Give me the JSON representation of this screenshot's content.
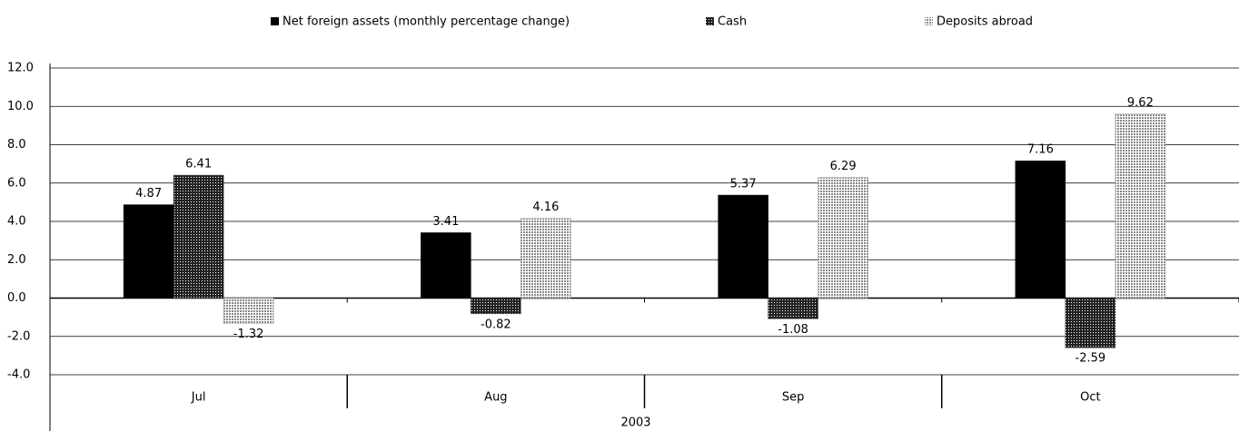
{
  "chart_data": {
    "type": "bar",
    "categories": [
      "Jul",
      "Aug",
      "Sep",
      "Oct"
    ],
    "group_label": "2003",
    "series": [
      {
        "name": "Net foreign assets (monthly percentage change)",
        "color": "#000000",
        "pattern": "solid",
        "values": [
          4.87,
          3.41,
          5.37,
          7.16
        ]
      },
      {
        "name": "Cash",
        "color": "#333333",
        "pattern": "dense",
        "values": [
          6.41,
          -0.82,
          -1.08,
          -2.59
        ]
      },
      {
        "name": "Deposits abroad",
        "color": "#999999",
        "pattern": "light",
        "values": [
          -1.32,
          4.16,
          6.29,
          9.62
        ]
      }
    ],
    "ylim": [
      -4,
      12
    ],
    "yticks": [
      {
        "value": -4,
        "label": "-4.0"
      },
      {
        "value": -2,
        "label": "-2.0"
      },
      {
        "value": 0,
        "label": "0.0"
      },
      {
        "value": 2,
        "label": "2.0"
      },
      {
        "value": 4,
        "label": "4.0"
      },
      {
        "value": 6,
        "label": "6.0"
      },
      {
        "value": 8,
        "label": "8.0"
      },
      {
        "value": 10,
        "label": "10.0"
      },
      {
        "value": 12,
        "label": "12.0"
      }
    ],
    "grid": true
  }
}
